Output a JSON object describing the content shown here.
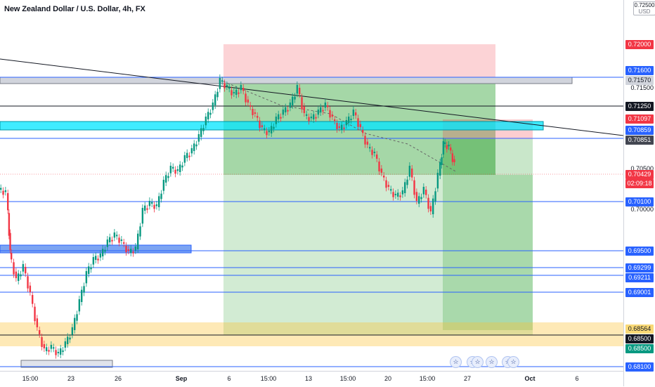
{
  "chart": {
    "title": "New Zealand Dollar / U.S. Dollar, 4h, FX",
    "currency": "USD",
    "top_partial_label": "0.72500"
  },
  "price_axis": {
    "plain_labels": [
      "0.71500",
      "0.70500",
      "0.70000"
    ],
    "tags": [
      {
        "value": "0.72000",
        "bg": "#f23645",
        "fg": "#ffffff"
      },
      {
        "value": "0.71600",
        "bg": "#2962ff",
        "fg": "#ffffff"
      },
      {
        "value": "0.71570",
        "bg": "#d1d4dc",
        "fg": "#131722"
      },
      {
        "value": "0.71250",
        "bg": "#131722",
        "fg": "#ffffff"
      },
      {
        "value": "0.71097",
        "bg": "#f23645",
        "fg": "#ffffff"
      },
      {
        "value": "0.70859",
        "bg": "#2962ff",
        "fg": "#ffffff"
      },
      {
        "value": "0.70851",
        "bg": "#434651",
        "fg": "#ffffff"
      },
      {
        "value": "0.70429",
        "bg": "#f23645",
        "fg": "#ffffff"
      },
      {
        "value": "02:09:18",
        "bg": "#f23645",
        "fg": "#ffffff"
      },
      {
        "value": "0.70100",
        "bg": "#2962ff",
        "fg": "#ffffff"
      },
      {
        "value": "0.69500",
        "bg": "#2962ff",
        "fg": "#ffffff"
      },
      {
        "value": "0.69299",
        "bg": "#2962ff",
        "fg": "#ffffff"
      },
      {
        "value": "0.69211",
        "bg": "#2962ff",
        "fg": "#ffffff"
      },
      {
        "value": "0.69001",
        "bg": "#2962ff",
        "fg": "#ffffff"
      },
      {
        "value": "0.68564",
        "bg": "#f9d976",
        "fg": "#131722"
      },
      {
        "value": "0.68500",
        "bg": "#131722",
        "fg": "#ffffff"
      },
      {
        "value": "0.68500",
        "bg": "#089981",
        "fg": "#ffffff"
      },
      {
        "value": "0.68100",
        "bg": "#2962ff",
        "fg": "#ffffff"
      }
    ]
  },
  "time_axis": {
    "labels": [
      "15:00",
      "23",
      "26",
      "Sep",
      "6",
      "15:00",
      "13",
      "15:00",
      "20",
      "15:00",
      "27",
      "Oct",
      "6"
    ]
  },
  "event_icons": [
    "flag-us",
    "flag-us",
    "flag-us",
    "flag-us",
    "flag-us",
    "flag-us"
  ],
  "colors": {
    "bull": "#089981",
    "bear": "#f23645",
    "level_line": "#2962ff",
    "profit_zone": "#4caf50",
    "loss_zone": "#f23645",
    "support_zone": "#fbc02d",
    "resistance_cyan": "#00e5ff"
  }
}
